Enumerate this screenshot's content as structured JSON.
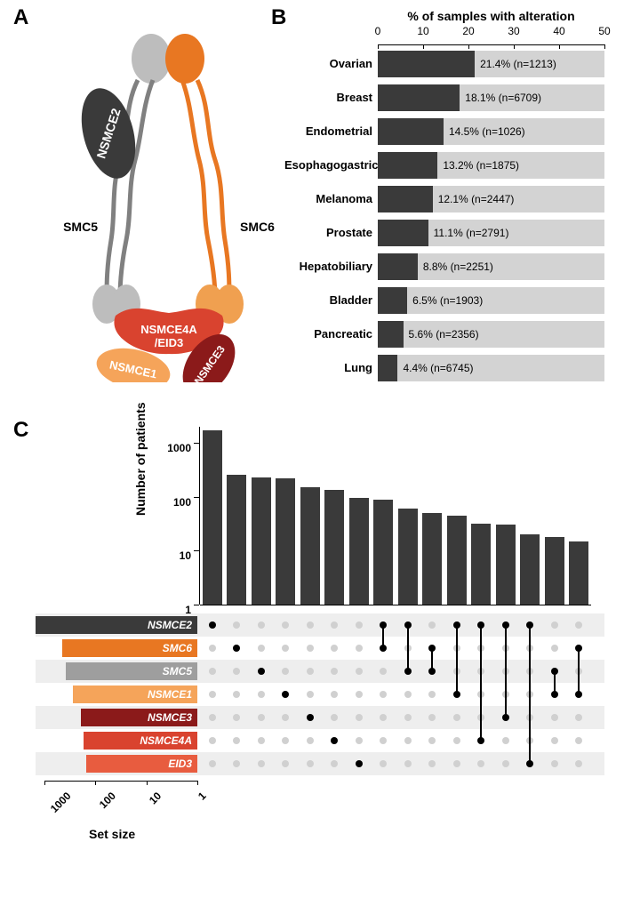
{
  "panel_labels": {
    "A": "A",
    "B": "B",
    "C": "C"
  },
  "panelA": {
    "subunits": {
      "SMC5": {
        "label": "SMC5",
        "color": "#808080"
      },
      "SMC6": {
        "label": "SMC6",
        "color": "#e87722"
      },
      "NSMCE2": {
        "label": "NSMCE2",
        "color": "#3a3a3a"
      },
      "NSMCE4A": {
        "label": "NSMCE4A\n/EID3",
        "color": "#d9432f"
      },
      "NSMCE1": {
        "label": "NSMCE1",
        "color": "#f5a45a"
      },
      "NSMCE3": {
        "label": "NSMCE3",
        "color": "#8b1a1a"
      }
    }
  },
  "panelB": {
    "axis_title": "% of samples with alteration",
    "xlim_max": 50,
    "xtick_step": 10,
    "bar_bg": "#d3d3d3",
    "bar_fill": "#3a3a3a",
    "rows": [
      {
        "category": "Ovarian",
        "pct": 21.4,
        "pct_text": "21.4%",
        "n_text": "(n=1213)"
      },
      {
        "category": "Breast",
        "pct": 18.1,
        "pct_text": "18.1%",
        "n_text": "(n=6709)"
      },
      {
        "category": "Endometrial",
        "pct": 14.5,
        "pct_text": "14.5%",
        "n_text": "(n=1026)"
      },
      {
        "category": "Esophagogastric",
        "pct": 13.2,
        "pct_text": "13.2%",
        "n_text": "(n=1875)"
      },
      {
        "category": "Melanoma",
        "pct": 12.1,
        "pct_text": "12.1%",
        "n_text": "(n=2447)"
      },
      {
        "category": "Prostate",
        "pct": 11.1,
        "pct_text": "11.1%",
        "n_text": "(n=2791)"
      },
      {
        "category": "Hepatobiliary",
        "pct": 8.8,
        "pct_text": "8.8%",
        "n_text": "(n=2251)"
      },
      {
        "category": "Bladder",
        "pct": 6.5,
        "pct_text": "6.5%",
        "n_text": "(n=1903)"
      },
      {
        "category": "Pancreatic",
        "pct": 5.6,
        "pct_text": "5.6%",
        "n_text": "(n=2356)"
      },
      {
        "category": "Lung",
        "pct": 4.4,
        "pct_text": "4.4%",
        "n_text": "(n=6745)"
      }
    ]
  },
  "panelC": {
    "ylab": "Number of patients",
    "yticks": [
      1,
      10,
      100,
      1000
    ],
    "ymax_log": 3.3,
    "bar_fill": "#3a3a3a",
    "dot_off": "#d0d0d0",
    "dot_on": "#000000",
    "alt_row_bg": "#eeeeee",
    "genes": [
      {
        "name": "NSMCE2",
        "set_size": 1900,
        "color": "#3a3a3a"
      },
      {
        "name": "SMC6",
        "set_size": 450,
        "color": "#e87722"
      },
      {
        "name": "SMC5",
        "set_size": 380,
        "color": "#9e9e9e"
      },
      {
        "name": "NSMCE1",
        "set_size": 280,
        "color": "#f5a45a"
      },
      {
        "name": "NSMCE3",
        "set_size": 190,
        "color": "#8b1a1a"
      },
      {
        "name": "NSMCE4A",
        "set_size": 170,
        "color": "#d9432f"
      },
      {
        "name": "EID3",
        "set_size": 150,
        "color": "#e85c3f"
      }
    ],
    "intersections": [
      {
        "value": 1700,
        "members": [
          0
        ]
      },
      {
        "value": 260,
        "members": [
          1
        ]
      },
      {
        "value": 230,
        "members": [
          2
        ]
      },
      {
        "value": 220,
        "members": [
          3
        ]
      },
      {
        "value": 150,
        "members": [
          4
        ]
      },
      {
        "value": 135,
        "members": [
          5
        ]
      },
      {
        "value": 95,
        "members": [
          6
        ]
      },
      {
        "value": 90,
        "members": [
          0,
          1
        ]
      },
      {
        "value": 60,
        "members": [
          0,
          2
        ]
      },
      {
        "value": 50,
        "members": [
          1,
          2
        ]
      },
      {
        "value": 45,
        "members": [
          0,
          3
        ]
      },
      {
        "value": 32,
        "members": [
          0,
          5
        ]
      },
      {
        "value": 30,
        "members": [
          0,
          4
        ]
      },
      {
        "value": 20,
        "members": [
          0,
          6
        ]
      },
      {
        "value": 18,
        "members": [
          2,
          3
        ]
      },
      {
        "value": 15,
        "members": [
          1,
          3
        ]
      }
    ],
    "setsize_ticks": [
      1000,
      100,
      10,
      1
    ],
    "setsize_max_log": 3,
    "setsize_label": "Set size"
  }
}
